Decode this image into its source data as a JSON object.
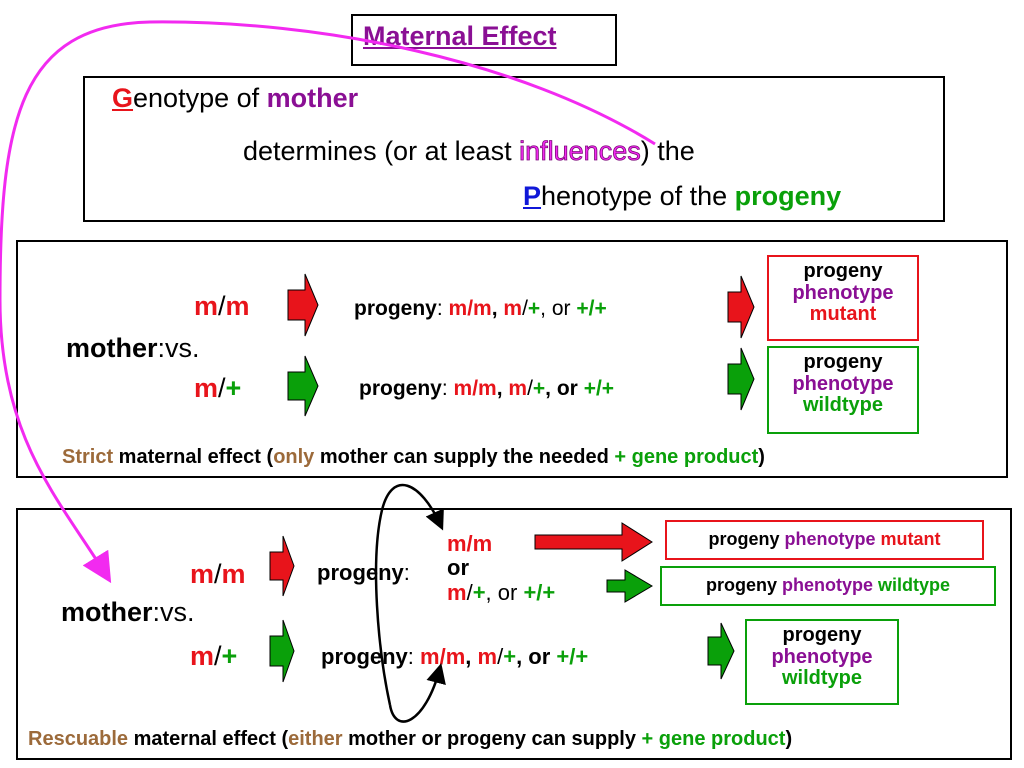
{
  "title": "Maternal Effect",
  "definition": {
    "line1": {
      "first_letter": "G",
      "rest": "enotype of ",
      "mother": "mother"
    },
    "line2": {
      "pre": "determines (or at least ",
      "influences": "influences",
      "post": ") the"
    },
    "line3": {
      "first_letter": "P",
      "rest": "henotype of the ",
      "progeny": "progeny"
    }
  },
  "strict": {
    "mother_label": "mother",
    "colon": ":",
    "vs_label": "vs.",
    "genotype1": {
      "a": "m",
      "slash": "/",
      "b": "m"
    },
    "genotype2": {
      "a": "m",
      "slash": "/",
      "b": "+"
    },
    "row1": {
      "progeny": "progeny",
      "colon": ": ",
      "g1": "m/m",
      "c1": ", ",
      "g2a": "m",
      "g2s": "/",
      "g2b": "+",
      "c2": ", or ",
      "g3": "+/+"
    },
    "row2": {
      "progeny": "progeny",
      "colon": ": ",
      "g1": "m/m",
      "c1": ", ",
      "g2a": "m",
      "g2s": "/",
      "g2b": "+",
      "c2": ", or ",
      "g3": "+/+"
    },
    "result1": {
      "l1": "progeny",
      "l2": "phenotype",
      "l3": "mutant"
    },
    "result2": {
      "l1": "progeny",
      "l2": "phenotype",
      "l3": "wildtype"
    },
    "caption": {
      "strict": "Strict",
      "p1": " maternal effect (",
      "only": "only",
      "p2": " mother can supply the needed ",
      "plus": "+ gene product",
      "p3": ")"
    }
  },
  "rescuable": {
    "mother_label": "mother",
    "colon": ":",
    "vs_label": "vs.",
    "genotype1": {
      "a": "m",
      "slash": "/",
      "b": "m"
    },
    "genotype2": {
      "a": "m",
      "slash": "/",
      "b": "+"
    },
    "row1": {
      "progeny": "progeny",
      "colon": ":",
      "mm": "m/m",
      "or": "or",
      "g2a": "m",
      "g2s": "/",
      "g2b": "+",
      "c2": ", or ",
      "g3": "+/+"
    },
    "row2": {
      "progeny": "progeny",
      "colon": ": ",
      "g1": "m/m",
      "c1": ", ",
      "g2a": "m",
      "g2s": "/",
      "g2b": "+",
      "c2": ", or ",
      "g3": "+/+"
    },
    "result_mutant": {
      "p1": "progeny ",
      "p2": "phenotype ",
      "p3": "mutant"
    },
    "result_wild": {
      "p1": "progeny ",
      "p2": "phenotype ",
      "p3": "wildtype"
    },
    "result2": {
      "l1": "progeny",
      "l2": "phenotype",
      "l3": "wildtype"
    },
    "caption": {
      "rescuable": "Rescuable",
      "p1": " maternal effect (",
      "either": "either",
      "p2": " mother or progeny can supply ",
      "plus": "+ gene product",
      "p3": ")"
    }
  },
  "colors": {
    "red": "#e8141b",
    "green": "#0aa00a",
    "purple": "#8a0f94",
    "blue": "#1018d8",
    "brown": "#9c6a3a",
    "magenta": "#f22af0"
  }
}
